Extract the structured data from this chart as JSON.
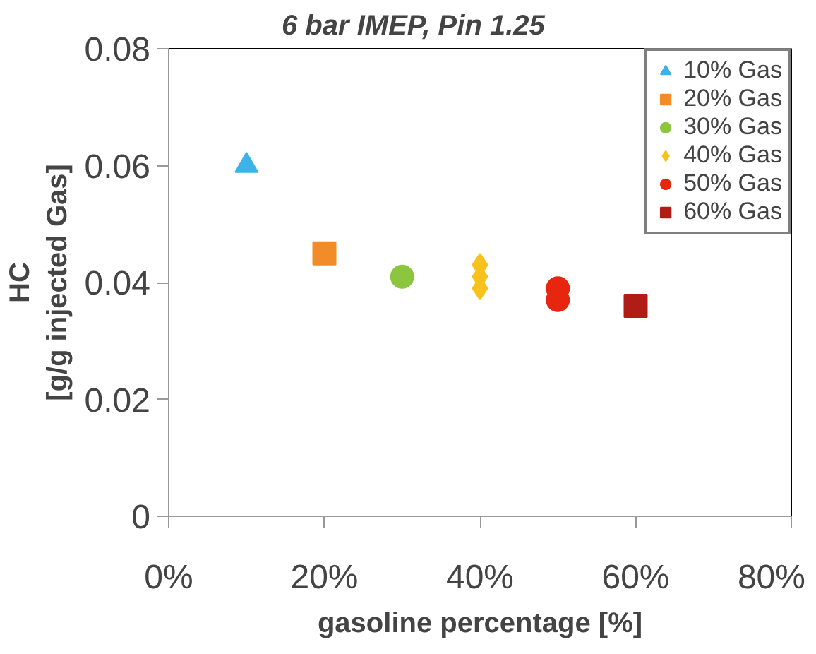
{
  "chart_data": {
    "type": "scatter",
    "title": "6 bar IMEP, Pin 1.25",
    "xlabel": "gasoline percentage [%]",
    "ylabel": "HC\n[g/g injected Gas]",
    "xlim": [
      0,
      0.8
    ],
    "xticks": [
      {
        "value": 0,
        "label": "0%"
      },
      {
        "value": 0.2,
        "label": "20%"
      },
      {
        "value": 0.4,
        "label": "40%"
      },
      {
        "value": 0.6,
        "label": "60%"
      },
      {
        "value": 0.8,
        "label": "80%"
      }
    ],
    "ylim": [
      0,
      0.08
    ],
    "yticks": [
      {
        "value": 0,
        "label": "0"
      },
      {
        "value": 0.02,
        "label": "0.02"
      },
      {
        "value": 0.04,
        "label": "0.04"
      },
      {
        "value": 0.06,
        "label": "0.06"
      },
      {
        "value": 0.08,
        "label": "0.08"
      }
    ],
    "grid": false,
    "legend": "top right",
    "series": [
      {
        "name": "10% Gas",
        "color": "#3bb3ea",
        "marker": "triangle",
        "x": [
          0.1
        ],
        "values": [
          0.06
        ]
      },
      {
        "name": "20% Gas",
        "color": "#f28c28",
        "marker": "square",
        "x": [
          0.2
        ],
        "values": [
          0.045
        ]
      },
      {
        "name": "30% Gas",
        "color": "#8cc63f",
        "marker": "circle",
        "x": [
          0.3
        ],
        "values": [
          0.041
        ]
      },
      {
        "name": "40% Gas",
        "color": "#f7c21b",
        "marker": "diamond",
        "x": [
          0.4,
          0.4,
          0.4
        ],
        "values": [
          0.043,
          0.041,
          0.039
        ]
      },
      {
        "name": "50% Gas",
        "color": "#e8250e",
        "marker": "circle",
        "x": [
          0.5,
          0.5
        ],
        "values": [
          0.039,
          0.037
        ]
      },
      {
        "name": "60% Gas",
        "color": "#b01d16",
        "marker": "square",
        "x": [
          0.6
        ],
        "values": [
          0.036
        ]
      }
    ]
  }
}
